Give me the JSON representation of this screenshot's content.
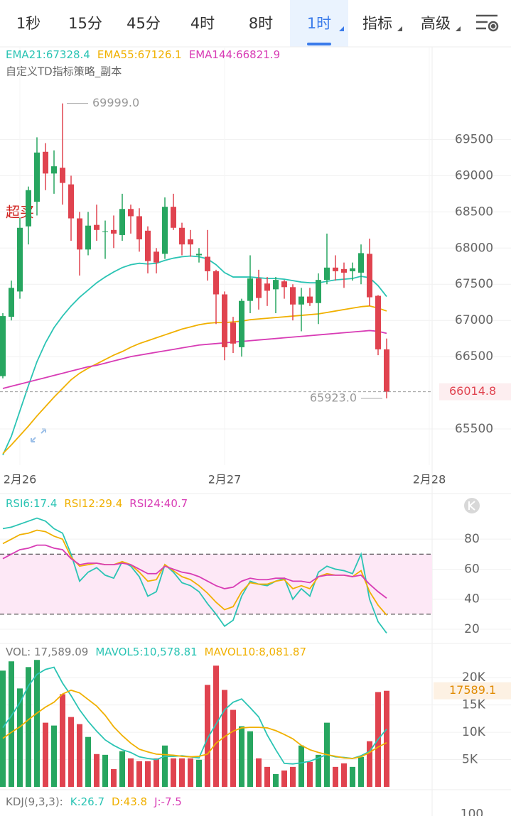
{
  "toolbar": {
    "tabs": [
      "1秒",
      "15分",
      "45分",
      "4时",
      "8时",
      "1时",
      "指标",
      "高级"
    ],
    "active": 5
  },
  "chart_data": [
    {
      "type": "candlestick",
      "subtitle": "自定义TD指标策略_副本",
      "annotation": "超买",
      "up_color": "#27a660",
      "down_color": "#e0434f",
      "open": [
        66230,
        67050,
        67400,
        68300,
        68640,
        69330,
        69030,
        69110,
        68880,
        68410,
        67980,
        68320,
        68220,
        68250,
        68180,
        68540,
        68440,
        68240,
        67950,
        67920,
        68570,
        68280,
        68120,
        67900,
        67880,
        67680,
        67360,
        66970,
        66630,
        67270,
        67580,
        67510,
        67430,
        67540,
        67460,
        67220,
        67330,
        67240,
        67560,
        67730,
        67710,
        67680,
        67660,
        67920,
        67340,
        66600
      ],
      "high": [
        67100,
        67550,
        68420,
        68850,
        69530,
        69450,
        69350,
        69999,
        69000,
        68500,
        68500,
        68600,
        68380,
        68450,
        68750,
        68600,
        68550,
        68300,
        68000,
        68700,
        68750,
        68350,
        68250,
        68000,
        68250,
        67700,
        67400,
        67050,
        67300,
        67900,
        67700,
        67600,
        67600,
        67560,
        67500,
        67450,
        67450,
        67650,
        68200,
        67900,
        67800,
        67800,
        68050,
        68130,
        67350,
        66750
      ],
      "low": [
        66200,
        67000,
        67300,
        68050,
        68450,
        68800,
        68750,
        68600,
        68100,
        67620,
        67900,
        68100,
        67850,
        68000,
        68100,
        68200,
        67950,
        67650,
        67650,
        67850,
        68250,
        67900,
        67880,
        67800,
        67550,
        66950,
        66450,
        66550,
        66500,
        67100,
        67150,
        67200,
        67100,
        67300,
        67000,
        66850,
        67200,
        66950,
        67500,
        67550,
        67450,
        67550,
        67500,
        67200,
        66520,
        65923
      ],
      "close": [
        67060,
        67450,
        68280,
        68800,
        69320,
        69030,
        69130,
        68900,
        68410,
        67980,
        68310,
        68250,
        68230,
        68200,
        68540,
        68440,
        68120,
        67820,
        67800,
        68570,
        68280,
        68050,
        68050,
        67920,
        67680,
        67360,
        66630,
        66680,
        67270,
        67580,
        67310,
        67410,
        67560,
        67460,
        67220,
        67330,
        67240,
        67560,
        67730,
        67680,
        67660,
        67720,
        67930,
        67320,
        66600,
        66014.8
      ],
      "series": [
        {
          "name": "EMA21:67328.4",
          "color": "#2bc4b4",
          "values": [
            65140,
            65400,
            65750,
            66100,
            66430,
            66690,
            66900,
            67060,
            67200,
            67320,
            67420,
            67520,
            67600,
            67670,
            67730,
            67770,
            67790,
            67780,
            67790,
            67830,
            67860,
            67880,
            67890,
            67880,
            67850,
            67770,
            67660,
            67600,
            67600,
            67600,
            67590,
            67580,
            67580,
            67570,
            67550,
            67530,
            67520,
            67520,
            67540,
            67560,
            67570,
            67580,
            67610,
            67590,
            67480,
            67330
          ]
        },
        {
          "name": "EMA55:67126.1",
          "color": "#f0b000",
          "values": [
            65160,
            65280,
            65410,
            65540,
            65680,
            65810,
            65940,
            66060,
            66180,
            66270,
            66340,
            66400,
            66460,
            66520,
            66570,
            66630,
            66680,
            66720,
            66760,
            66800,
            66840,
            66880,
            66910,
            66940,
            66960,
            66970,
            66970,
            66980,
            66990,
            67010,
            67020,
            67030,
            67040,
            67050,
            67060,
            67070,
            67080,
            67090,
            67110,
            67130,
            67150,
            67170,
            67190,
            67200,
            67170,
            67130
          ]
        },
        {
          "name": "EMA144:66821.9",
          "color": "#d83cb5",
          "values": [
            66060,
            66090,
            66120,
            66150,
            66180,
            66210,
            66240,
            66270,
            66300,
            66330,
            66360,
            66380,
            66410,
            66440,
            66470,
            66500,
            66520,
            66540,
            66560,
            66580,
            66600,
            66620,
            66640,
            66660,
            66670,
            66680,
            66690,
            66700,
            66710,
            66720,
            66730,
            66740,
            66750,
            66760,
            66770,
            66780,
            66790,
            66800,
            66810,
            66820,
            66830,
            66840,
            66850,
            66860,
            66850,
            66822
          ]
        }
      ],
      "ylim": [
        65000,
        70780
      ],
      "yticks": [
        65500,
        66500,
        67000,
        67500,
        68000,
        68500,
        69000,
        69500
      ],
      "xticks": [
        {
          "value": 2,
          "label": "2月26"
        },
        {
          "value": 26,
          "label": "2月27"
        },
        {
          "value": 50,
          "label": "2月28"
        }
      ],
      "last_price": 66014.8,
      "high_marker": {
        "value": 69999,
        "label": "69999.0"
      },
      "low_marker": {
        "value": 65923,
        "label": "65923.0"
      },
      "grid": true
    },
    {
      "type": "line",
      "band": [
        30,
        70
      ],
      "band_color": "#fde8f6",
      "series": [
        {
          "name": "RSI6:17.4",
          "color": "#2bc4b4",
          "values": [
            87,
            88,
            90,
            92,
            94,
            92,
            87,
            84,
            70,
            52,
            58,
            61,
            56,
            54,
            65,
            62,
            55,
            42,
            45,
            63,
            58,
            51,
            49,
            45,
            37,
            30,
            22,
            26,
            42,
            52,
            50,
            49,
            52,
            54,
            40,
            47,
            42,
            58,
            62,
            60,
            59,
            57,
            70,
            40,
            25,
            17.4
          ]
        },
        {
          "name": "RSI12:29.4",
          "color": "#f0b000",
          "values": [
            77,
            80,
            83,
            84,
            86,
            85,
            82,
            80,
            68,
            62,
            63,
            64,
            63,
            63,
            65,
            63,
            58,
            52,
            53,
            63,
            59,
            55,
            53,
            49,
            44,
            38,
            33,
            35,
            45,
            51,
            50,
            50,
            52,
            53,
            47,
            49,
            47,
            55,
            57,
            56,
            56,
            55,
            59,
            45,
            36,
            29.4
          ]
        },
        {
          "name": "RSI24:40.7",
          "color": "#d83cb5",
          "values": [
            67,
            70,
            73,
            74,
            76,
            76,
            74,
            73,
            67,
            63,
            64,
            64,
            63,
            63,
            64,
            63,
            60,
            57,
            57,
            62,
            60,
            58,
            57,
            55,
            52,
            49,
            47,
            48,
            52,
            54,
            53,
            53,
            54,
            54,
            52,
            52,
            51,
            55,
            56,
            56,
            56,
            55,
            56,
            50,
            45,
            40.7
          ]
        }
      ],
      "ylim": [
        11,
        108
      ],
      "yticks": [
        20,
        40,
        60,
        80
      ],
      "grid": true
    },
    {
      "type": "bar",
      "label": "VOL: 17,589.09",
      "values": [
        21280,
        22980,
        18020,
        21930,
        23240,
        11750,
        11230,
        16970,
        12790,
        11490,
        9140,
        6010,
        5870,
        3260,
        6530,
        5220,
        4700,
        4700,
        5220,
        7570,
        5220,
        5220,
        5220,
        4960,
        18670,
        22190,
        17750,
        14100,
        11100,
        10180,
        5220,
        3660,
        2350,
        3000,
        3660,
        7570,
        4570,
        5870,
        11750,
        3660,
        4310,
        3660,
        5480,
        8360,
        17360,
        17589.09
      ],
      "series": [
        {
          "name": "MAVOL5:10,578.81",
          "color": "#2bc4b4",
          "values": [
            10840,
            13000,
            15400,
            18500,
            20600,
            21500,
            21900,
            19000,
            16700,
            14100,
            12000,
            10200,
            8600,
            7600,
            6800,
            6300,
            5500,
            5200,
            5000,
            5600,
            5600,
            5700,
            5500,
            5300,
            8900,
            11500,
            14100,
            15500,
            16100,
            14500,
            12800,
            9500,
            6800,
            4300,
            4200,
            4400,
            4700,
            5300,
            5900,
            5500,
            5400,
            5200,
            5700,
            6500,
            8700,
            10578.81
          ]
        },
        {
          "name": "MAVOL10:8,081.87",
          "color": "#f0b000",
          "values": [
            8880,
            10000,
            11000,
            12300,
            13500,
            14600,
            15500,
            17000,
            17700,
            17200,
            16000,
            14800,
            13100,
            11000,
            9400,
            8000,
            6900,
            6400,
            6000,
            5900,
            5800,
            5600,
            5500,
            5600,
            6000,
            8000,
            9200,
            10200,
            10800,
            10900,
            10900,
            10800,
            10300,
            9600,
            8800,
            7600,
            6800,
            6300,
            5900,
            5600,
            5300,
            5200,
            5500,
            6300,
            7300,
            8081.87
          ]
        }
      ],
      "last_value": 17589.1,
      "ylim": [
        0,
        26000
      ],
      "yticks": [
        {
          "value": 5000,
          "label": "5K"
        },
        {
          "value": 10000,
          "label": "10K"
        },
        {
          "value": 15000,
          "label": "15K"
        },
        {
          "value": 20000,
          "label": "20K"
        }
      ],
      "grid": true
    },
    {
      "type": "line",
      "label": "KDJ(9,3,3):",
      "series": [
        {
          "name": "K:26.7",
          "color": "#2bc4b4"
        },
        {
          "name": "D:43.8",
          "color": "#f0b000"
        },
        {
          "name": "J:-7.5",
          "color": "#d83cb5"
        }
      ],
      "ylim": [
        0,
        118
      ],
      "yticks": [
        100
      ]
    }
  ]
}
